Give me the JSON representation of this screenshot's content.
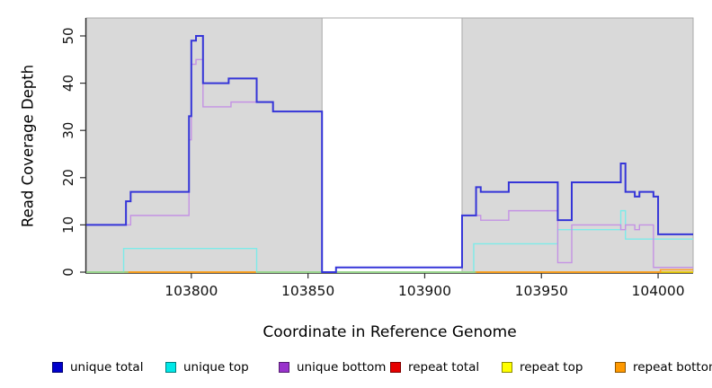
{
  "chart_data": {
    "type": "line",
    "step": true,
    "title": "",
    "xlabel": "Coordinate in Reference Genome",
    "ylabel": "Read Coverage Depth",
    "xlim": [
      103755,
      104015
    ],
    "ylim": [
      0,
      53.8
    ],
    "x_ticks": [
      103800,
      103850,
      103900,
      103950,
      104000
    ],
    "y_ticks": [
      0,
      10,
      20,
      30,
      40,
      50
    ],
    "grid": false,
    "legend_position": "bottom",
    "panel_color": "#d9d9d9",
    "panel_border": "#a9a9a9",
    "axis_color": "#2f2f2f",
    "tick_label_color": "#111111",
    "masked_panels": [
      [
        103755,
        103856
      ],
      [
        103916,
        104015
      ]
    ],
    "baseline_overlap": {
      "color": "#8fd98f",
      "segments": [
        [
          103755,
          103773
        ],
        [
          103828,
          103922
        ]
      ],
      "note": "pale green baseline where unique-top sits at zero over repeat lines"
    },
    "series": [
      {
        "name": "unique total",
        "legend_color": "#0000cc",
        "line_color": "#3535d8",
        "line_width": 2,
        "points": [
          [
            103755,
            10
          ],
          [
            103772,
            15
          ],
          [
            103774,
            17
          ],
          [
            103799,
            33
          ],
          [
            103800,
            49
          ],
          [
            103802,
            50
          ],
          [
            103805,
            40
          ],
          [
            103816,
            41
          ],
          [
            103828,
            36
          ],
          [
            103835,
            34
          ],
          [
            103856,
            0
          ],
          [
            103862,
            1
          ],
          [
            103916,
            12
          ],
          [
            103922,
            18
          ],
          [
            103924,
            17
          ],
          [
            103936,
            19
          ],
          [
            103957,
            11
          ],
          [
            103963,
            19
          ],
          [
            103984,
            23
          ],
          [
            103986,
            17
          ],
          [
            103990,
            16
          ],
          [
            103992,
            17
          ],
          [
            103998,
            16
          ],
          [
            104000,
            8
          ],
          [
            104015,
            8
          ]
        ]
      },
      {
        "name": "unique top",
        "legend_color": "#00e8e8",
        "line_color": "#7debe9",
        "line_width": 1.4,
        "points": [
          [
            103755,
            0
          ],
          [
            103771,
            5
          ],
          [
            103828,
            0
          ],
          [
            103921,
            6
          ],
          [
            103957,
            9
          ],
          [
            103984,
            13
          ],
          [
            103986,
            7
          ],
          [
            104015,
            7
          ]
        ]
      },
      {
        "name": "unique bottom",
        "legend_color": "#9933cc",
        "line_color": "#c492e4",
        "line_width": 1.4,
        "points": [
          [
            103755,
            10
          ],
          [
            103774,
            12
          ],
          [
            103799,
            28
          ],
          [
            103800,
            44
          ],
          [
            103802,
            45
          ],
          [
            103805,
            35
          ],
          [
            103817,
            36
          ],
          [
            103835,
            34
          ],
          [
            103856,
            0
          ],
          [
            103862,
            1
          ],
          [
            103916,
            12
          ],
          [
            103924,
            11
          ],
          [
            103936,
            13
          ],
          [
            103957,
            2
          ],
          [
            103963,
            10
          ],
          [
            103984,
            9
          ],
          [
            103986,
            10
          ],
          [
            103990,
            9
          ],
          [
            103992,
            10
          ],
          [
            103998,
            1
          ],
          [
            104015,
            1
          ]
        ]
      },
      {
        "name": "repeat total",
        "legend_color": "#e60000",
        "line_color": "#e60000",
        "line_width": 1.4,
        "points": [
          [
            103755,
            0
          ],
          [
            104015,
            0
          ]
        ]
      },
      {
        "name": "repeat top",
        "legend_color": "#ffff00",
        "line_color": "#f0f000",
        "line_width": 1.4,
        "points": [
          [
            103755,
            0
          ],
          [
            104015,
            0
          ]
        ]
      },
      {
        "name": "repeat bottom",
        "legend_color": "#ff9900",
        "line_color": "#ff9f21",
        "line_width": 1.6,
        "points": [
          [
            103755,
            0
          ],
          [
            104001,
            0.5
          ],
          [
            104015,
            0.5
          ]
        ]
      }
    ]
  }
}
